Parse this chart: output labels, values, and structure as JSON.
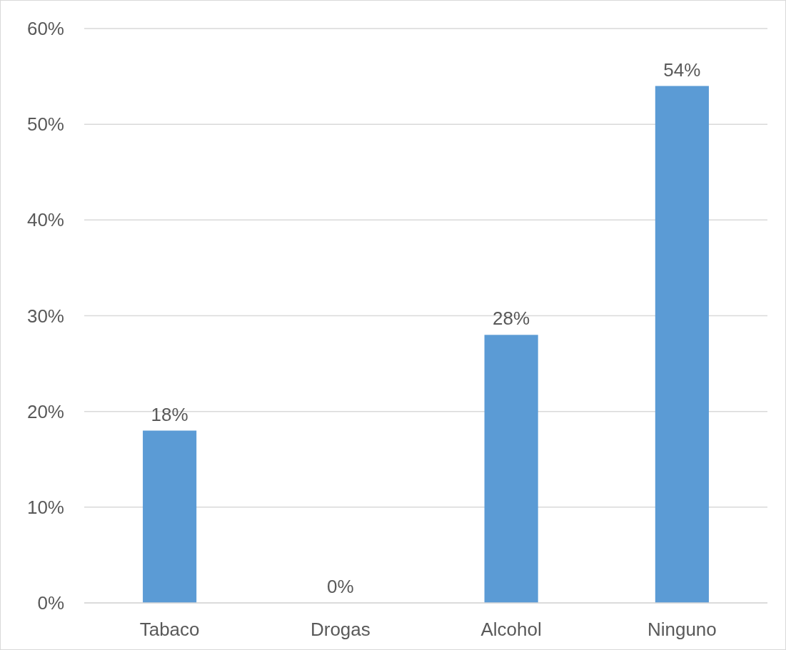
{
  "chart_data": {
    "type": "bar",
    "categories": [
      "Tabaco",
      "Drogas",
      "Alcohol",
      "Ninguno"
    ],
    "values": [
      18,
      0,
      28,
      54
    ],
    "value_labels": [
      "18%",
      "0%",
      "28%",
      "54%"
    ],
    "color": "#5b9bd5",
    "ylim": [
      0,
      60
    ],
    "yticks": [
      {
        "value": 0,
        "label": "0%"
      },
      {
        "value": 10,
        "label": "10%"
      },
      {
        "value": 20,
        "label": "20%"
      },
      {
        "value": 30,
        "label": "30%"
      },
      {
        "value": 40,
        "label": "40%"
      },
      {
        "value": 50,
        "label": "50%"
      },
      {
        "value": 60,
        "label": "60%"
      }
    ],
    "grid": true
  }
}
